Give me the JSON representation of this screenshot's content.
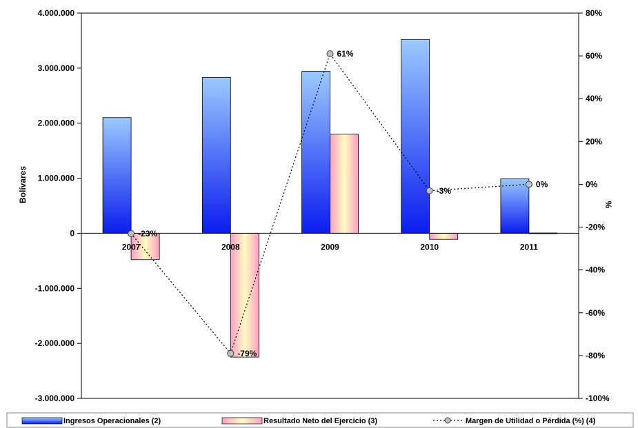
{
  "chart_data": {
    "type": "bar",
    "categories": [
      "2007",
      "2008",
      "2009",
      "2010",
      "2011"
    ],
    "ylabel": "Bolívares",
    "y2label": "%",
    "ylim": [
      -3000000,
      4000000
    ],
    "y_ticks": [
      "4.000.000",
      "3.000.000",
      "2.000.000",
      "1.000.000",
      "0",
      "-1.000.000",
      "-2.000.000",
      "-3.000.000"
    ],
    "y2lim": [
      -100,
      80
    ],
    "y2_ticks": [
      "80%",
      "60%",
      "40%",
      "20%",
      "0%",
      "-20%",
      "-40%",
      "-60%",
      "-80%",
      "-100%"
    ],
    "series": [
      {
        "name": "Ingresos Operacionales (2)",
        "kind": "bar",
        "values": [
          2100000,
          2830000,
          2940000,
          3520000,
          990000
        ]
      },
      {
        "name": "Resultado Neto del Ejercicio (3)",
        "kind": "bar",
        "values": [
          -480000,
          -2250000,
          1800000,
          -110000,
          5000
        ]
      },
      {
        "name": "Margen de Utilidad o Pérdida (%) (4)",
        "kind": "line",
        "axis": "right",
        "values": [
          -23,
          -79,
          61,
          -3,
          0
        ],
        "labels": [
          "-23%",
          "-79%",
          "61%",
          "-3%",
          "0%"
        ]
      }
    ],
    "legend_position": "bottom",
    "grid": false
  }
}
